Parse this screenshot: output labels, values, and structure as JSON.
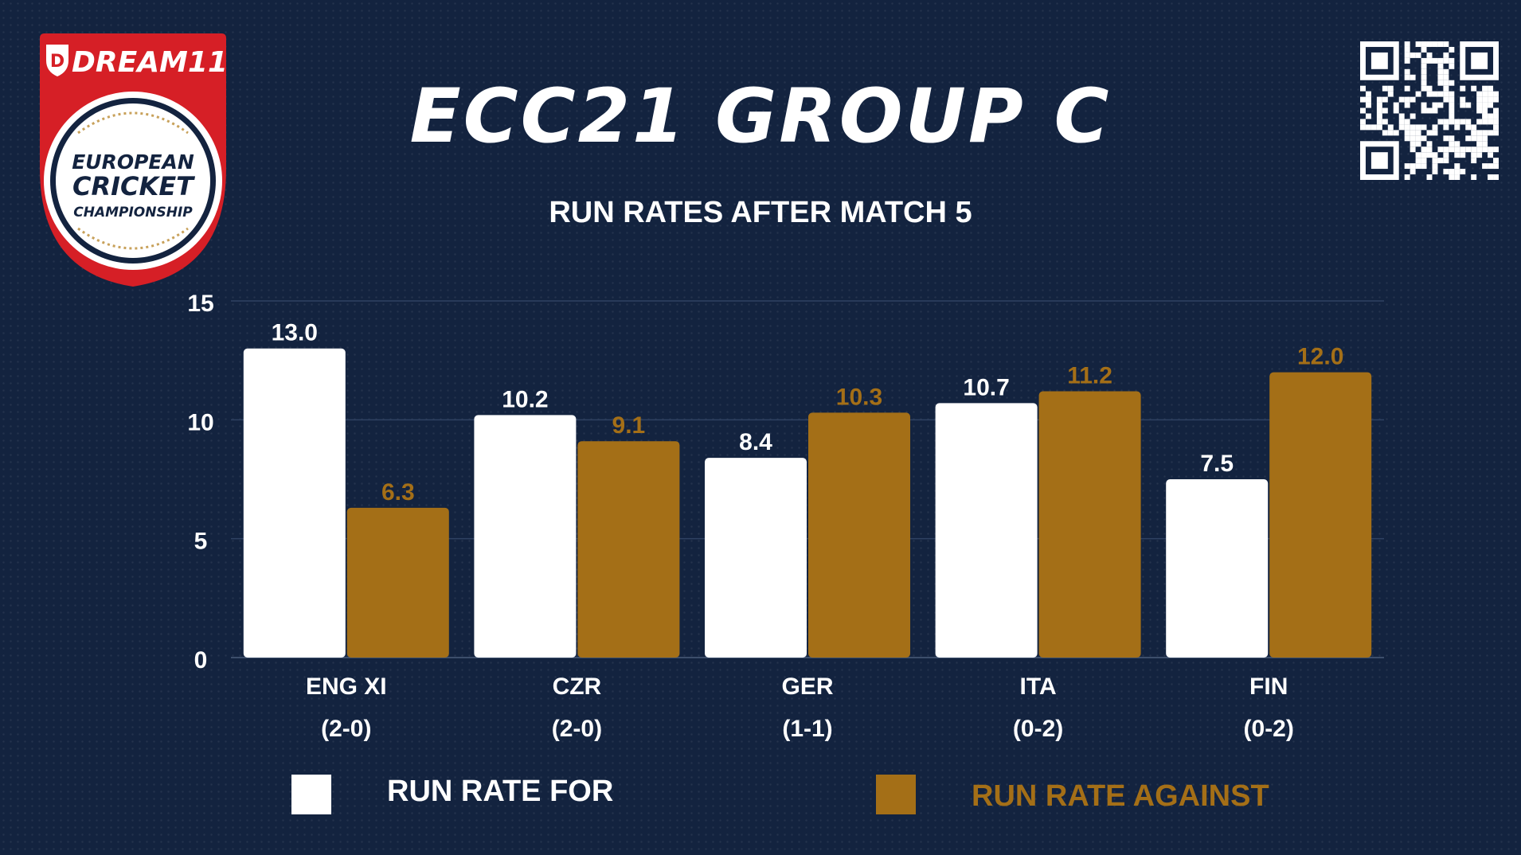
{
  "logo": {
    "brand": "DREAM11",
    "line1": "EUROPEAN",
    "line2": "CRICKET",
    "line3": "CHAMPIONSHIP"
  },
  "title": "ECC21 GROUP C",
  "subtitle": "RUN RATES AFTER MATCH 5",
  "colors": {
    "background": "#13233f",
    "for": "#ffffff",
    "against": "#a46f17",
    "brand_red": "#d61f26"
  },
  "chart_data": {
    "type": "bar",
    "categories": [
      {
        "team": "ENG XI",
        "record": "(2-0)"
      },
      {
        "team": "CZR",
        "record": "(2-0)"
      },
      {
        "team": "GER",
        "record": "(1-1)"
      },
      {
        "team": "ITA",
        "record": "(0-2)"
      },
      {
        "team": "FIN",
        "record": "(0-2)"
      }
    ],
    "series": [
      {
        "name": "RUN RATE FOR",
        "color": "#ffffff",
        "values": [
          13.0,
          10.2,
          8.4,
          10.7,
          7.5
        ],
        "labels": [
          "13.0",
          "10.2",
          "8.4",
          "10.7",
          "7.5"
        ]
      },
      {
        "name": "RUN RATE AGAINST",
        "color": "#a46f17",
        "values": [
          6.3,
          9.1,
          10.3,
          11.2,
          12.0
        ],
        "labels": [
          "6.3",
          "9.1",
          "10.3",
          "11.2",
          "12.0"
        ]
      }
    ],
    "yticks": [
      "0",
      "5",
      "10",
      "15"
    ],
    "ylim": [
      0,
      15
    ],
    "grid": true,
    "legend": "bottom"
  }
}
